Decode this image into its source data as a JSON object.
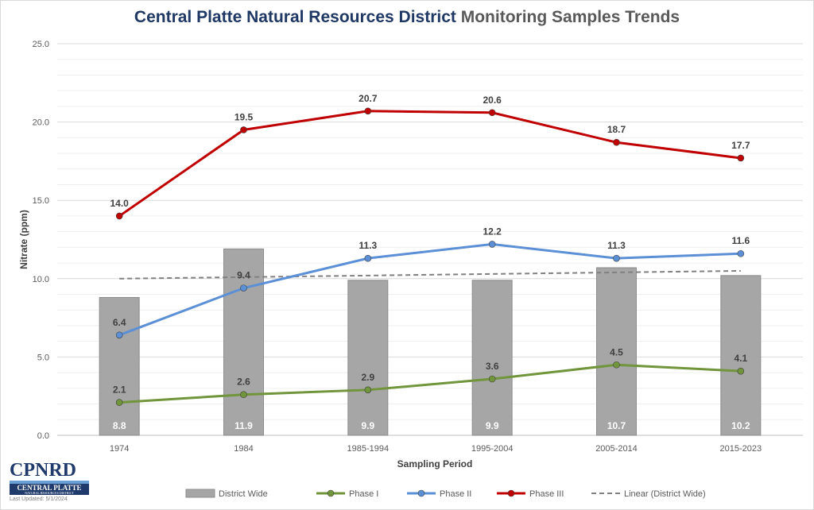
{
  "title": {
    "part1": "Central Platte Natural Resources District",
    "part2": "Monitoring Samples Trends"
  },
  "logo": {
    "text": "CPNRD",
    "band_line1": "CENTRAL PLATTE",
    "band_line2": "NATURAL RESOURCES DISTRICT",
    "updated": "Last Updated: 5/1/2024"
  },
  "chart_data": {
    "type": "bar",
    "title": "Central Platte Natural Resources District Monitoring Samples Trends",
    "xlabel": "Sampling Period",
    "ylabel": "Nitrate (ppm)",
    "ylim": [
      0,
      25
    ],
    "yticks": [
      0,
      5,
      10,
      15,
      20,
      25
    ],
    "ytick_labels": [
      "0.0",
      "5.0",
      "10.0",
      "15.0",
      "20.0",
      "25.0"
    ],
    "grid": true,
    "minor_grid": true,
    "legend_position": "bottom",
    "categories": [
      "1974",
      "1984",
      "1985-1994",
      "1995-2004",
      "2005-2014",
      "2015-2023"
    ],
    "series": [
      {
        "name": "District Wide",
        "kind": "bar",
        "color": "#a6a6a6",
        "values": [
          8.8,
          11.9,
          9.9,
          9.9,
          10.7,
          10.2
        ],
        "labels": [
          "8.8",
          "11.9",
          "9.9",
          "9.9",
          "10.7",
          "10.2"
        ]
      },
      {
        "name": "Phase I",
        "kind": "line",
        "color": "#70953b",
        "values": [
          2.1,
          2.6,
          2.9,
          3.6,
          4.5,
          4.1
        ],
        "labels": [
          "2.1",
          "2.6",
          "2.9",
          "3.6",
          "4.5",
          "4.1"
        ]
      },
      {
        "name": "Phase II",
        "kind": "line",
        "color": "#5b8fd6",
        "values": [
          6.4,
          9.4,
          11.3,
          12.2,
          11.3,
          11.6
        ],
        "labels": [
          "6.4",
          "9.4",
          "11.3",
          "12.2",
          "11.3",
          "11.6"
        ]
      },
      {
        "name": "Phase III",
        "kind": "line",
        "color": "#c00000",
        "values": [
          14.0,
          19.5,
          20.7,
          20.6,
          18.7,
          17.7
        ],
        "labels": [
          "14.0",
          "19.5",
          "20.7",
          "20.6",
          "18.7",
          "17.7"
        ]
      },
      {
        "name": "Linear (District Wide)",
        "kind": "trendline",
        "color": "#808080",
        "values": [
          10.0,
          10.1,
          10.2,
          10.3,
          10.4,
          10.5
        ]
      }
    ]
  }
}
